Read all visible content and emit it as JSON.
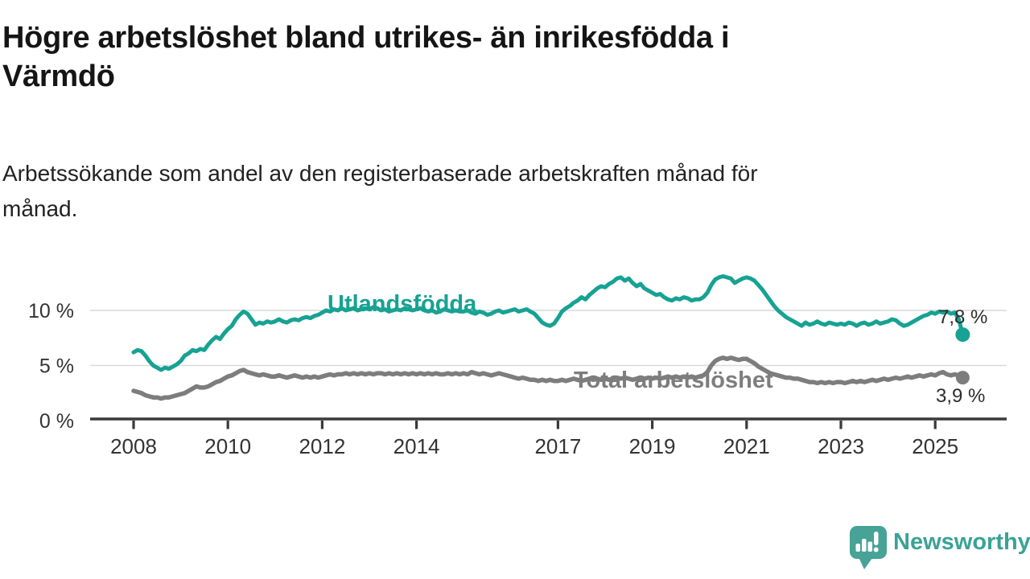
{
  "header": {
    "title_lines": [
      "Högre arbetslöshet bland utrikes- än inrikesfödda i",
      "Värmdö"
    ],
    "subtitle_lines": [
      "Arbetssökande som andel av den registerbaserade arbetskraften månad för",
      "månad."
    ]
  },
  "colors": {
    "background": "#ffffff",
    "title": "#151515",
    "subtitle": "#222222",
    "axis": "#3a3a3a",
    "tick_label": "#333333",
    "grid": "#d9d9d9",
    "value_label": "#2d2d2d",
    "series_foreign_born": "#17a293",
    "series_total": "#7d7d7d",
    "brand": "#3aa296"
  },
  "chart_data": {
    "type": "line",
    "title": "Högre arbetslöshet bland utrikes- än inrikesfödda i Värmdö",
    "subtitle": "Arbetssökande som andel av den registerbaserade arbetskraften månad för månad.",
    "unit": "%",
    "frequency": "monthly",
    "x_start": "2008-01",
    "x_end": "2025-08",
    "x_tick_years": [
      2008,
      2010,
      2012,
      2014,
      2017,
      2019,
      2021,
      2023,
      2025
    ],
    "y_ticks": [
      {
        "value": 0,
        "label": "0 %"
      },
      {
        "value": 5,
        "label": "5 %"
      },
      {
        "value": 10,
        "label": "10 %"
      }
    ],
    "ylim": [
      0,
      14.5
    ],
    "grid": "horizontal",
    "legend": "inline-series-labels",
    "series": [
      {
        "id": "utlandsfodda",
        "name": "Utlandsfödda",
        "color": "#17a293",
        "line_width": 5,
        "end_value": 7.8,
        "end_label": "7,8 %",
        "values": [
          6.2,
          6.4,
          6.3,
          5.9,
          5.4,
          5.0,
          4.8,
          4.6,
          4.8,
          4.7,
          4.9,
          5.1,
          5.4,
          5.9,
          6.1,
          6.4,
          6.3,
          6.5,
          6.4,
          6.9,
          7.3,
          7.6,
          7.4,
          7.9,
          8.3,
          8.6,
          9.2,
          9.6,
          9.9,
          9.7,
          9.2,
          8.7,
          8.9,
          8.8,
          9.0,
          8.9,
          9.0,
          9.2,
          9.0,
          8.9,
          9.1,
          9.2,
          9.1,
          9.3,
          9.4,
          9.3,
          9.5,
          9.6,
          9.8,
          10.0,
          9.9,
          10.1,
          10.0,
          10.2,
          10.0,
          10.1,
          10.2,
          10.0,
          10.1,
          10.2,
          10.1,
          10.3,
          10.2,
          10.0,
          10.1,
          9.9,
          10.0,
          10.1,
          10.0,
          10.2,
          10.1,
          10.0,
          10.1,
          10.2,
          10.0,
          9.9,
          10.0,
          9.8,
          9.9,
          10.1,
          10.0,
          9.9,
          10.0,
          9.9,
          9.9,
          10.0,
          9.8,
          9.7,
          9.9,
          9.8,
          9.6,
          9.7,
          9.9,
          10.0,
          9.8,
          9.9,
          10.0,
          10.1,
          9.9,
          10.0,
          10.1,
          9.9,
          9.7,
          9.3,
          8.9,
          8.7,
          8.6,
          8.8,
          9.3,
          9.9,
          10.2,
          10.4,
          10.7,
          10.9,
          11.2,
          11.0,
          11.4,
          11.7,
          12.0,
          12.2,
          12.1,
          12.4,
          12.6,
          12.9,
          13.0,
          12.7,
          12.9,
          12.5,
          12.2,
          12.4,
          12.0,
          11.8,
          11.6,
          11.4,
          11.5,
          11.2,
          11.0,
          10.9,
          11.1,
          11.0,
          11.2,
          11.1,
          10.9,
          11.0,
          11.0,
          11.2,
          11.6,
          12.3,
          12.8,
          13.0,
          13.1,
          13.0,
          12.9,
          12.5,
          12.7,
          12.9,
          13.0,
          12.9,
          12.7,
          12.3,
          11.9,
          11.4,
          10.9,
          10.4,
          10.0,
          9.7,
          9.4,
          9.2,
          9.0,
          8.8,
          8.6,
          8.9,
          8.7,
          8.8,
          9.0,
          8.8,
          8.7,
          8.9,
          8.8,
          8.7,
          8.8,
          8.7,
          8.9,
          8.8,
          8.6,
          8.8,
          8.9,
          8.7,
          8.8,
          9.0,
          8.8,
          8.9,
          9.0,
          9.2,
          9.1,
          8.8,
          8.6,
          8.7,
          8.9,
          9.1,
          9.3,
          9.5,
          9.6,
          9.8,
          9.7,
          9.9,
          9.8,
          9.9,
          9.7,
          9.8,
          9.2,
          7.8
        ]
      },
      {
        "id": "total",
        "name": "Total arbetslöshet",
        "color": "#7d7d7d",
        "line_width": 5.5,
        "end_value": 3.9,
        "end_label": "3,9 %",
        "values": [
          2.7,
          2.6,
          2.5,
          2.3,
          2.2,
          2.1,
          2.1,
          2.0,
          2.1,
          2.1,
          2.2,
          2.3,
          2.4,
          2.5,
          2.7,
          2.9,
          3.1,
          3.0,
          3.0,
          3.1,
          3.3,
          3.5,
          3.6,
          3.8,
          4.0,
          4.1,
          4.3,
          4.5,
          4.6,
          4.4,
          4.3,
          4.2,
          4.1,
          4.2,
          4.1,
          4.0,
          4.0,
          4.1,
          4.0,
          3.9,
          4.0,
          4.1,
          4.0,
          3.9,
          4.0,
          3.9,
          4.0,
          3.9,
          4.0,
          4.1,
          4.2,
          4.1,
          4.2,
          4.2,
          4.3,
          4.2,
          4.3,
          4.2,
          4.3,
          4.2,
          4.3,
          4.2,
          4.3,
          4.3,
          4.2,
          4.3,
          4.2,
          4.3,
          4.2,
          4.3,
          4.2,
          4.3,
          4.2,
          4.3,
          4.2,
          4.3,
          4.2,
          4.3,
          4.2,
          4.2,
          4.3,
          4.2,
          4.3,
          4.2,
          4.3,
          4.2,
          4.4,
          4.3,
          4.2,
          4.3,
          4.2,
          4.1,
          4.2,
          4.3,
          4.2,
          4.1,
          4.0,
          3.9,
          3.8,
          3.9,
          3.8,
          3.7,
          3.7,
          3.6,
          3.7,
          3.6,
          3.7,
          3.6,
          3.6,
          3.7,
          3.6,
          3.7,
          3.8,
          3.7,
          3.6,
          3.7,
          3.8,
          3.7,
          3.8,
          3.7,
          3.8,
          3.7,
          3.8,
          3.9,
          3.8,
          3.9,
          3.8,
          3.7,
          3.8,
          3.7,
          3.8,
          3.9,
          3.8,
          3.9,
          3.8,
          3.9,
          4.0,
          3.9,
          4.0,
          3.9,
          4.0,
          3.9,
          4.0,
          3.9,
          4.0,
          4.1,
          4.4,
          5.0,
          5.4,
          5.6,
          5.7,
          5.6,
          5.7,
          5.6,
          5.5,
          5.6,
          5.6,
          5.4,
          5.2,
          4.9,
          4.7,
          4.5,
          4.3,
          4.2,
          4.1,
          4.0,
          3.9,
          3.9,
          3.8,
          3.8,
          3.7,
          3.6,
          3.5,
          3.5,
          3.4,
          3.5,
          3.4,
          3.5,
          3.4,
          3.5,
          3.5,
          3.4,
          3.5,
          3.6,
          3.5,
          3.6,
          3.5,
          3.6,
          3.7,
          3.6,
          3.7,
          3.8,
          3.7,
          3.8,
          3.9,
          3.8,
          3.9,
          4.0,
          3.9,
          4.0,
          4.1,
          4.0,
          4.1,
          4.2,
          4.1,
          4.3,
          4.4,
          4.2,
          4.1,
          4.2,
          4.1,
          3.9
        ]
      }
    ]
  },
  "footer": {
    "brand_name": "Newsworthy",
    "brand_icon": "speech-bubble-bar-chart-icon"
  }
}
